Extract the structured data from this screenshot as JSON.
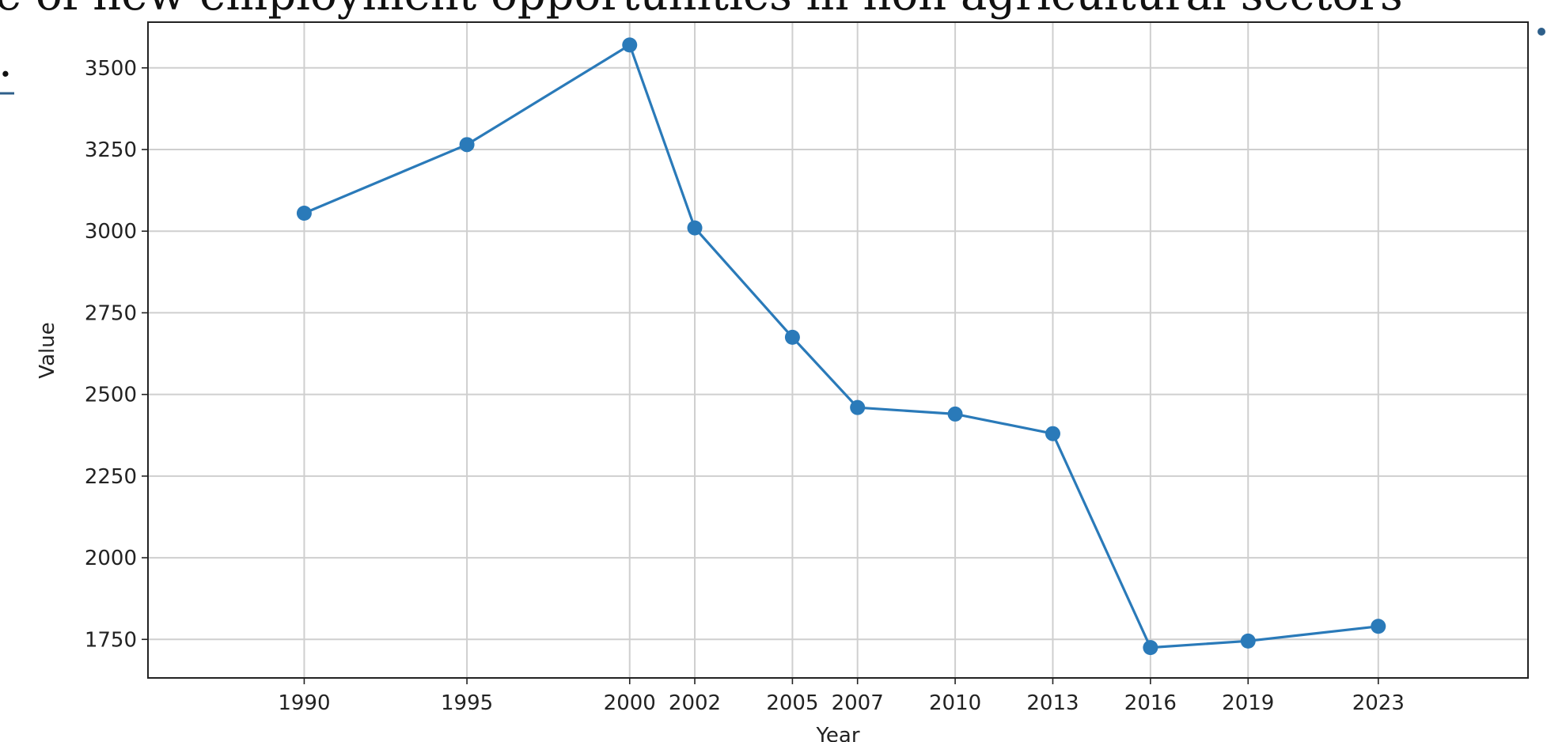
{
  "background_text": {
    "headline": "e of new employment opportunities in non agricultural sectors",
    "left_mark": "."
  },
  "chart_data": {
    "type": "line",
    "title": "",
    "xlabel": "Year",
    "ylabel": "Value",
    "x": [
      1990,
      1995,
      2000,
      2002,
      2005,
      2007,
      2010,
      2013,
      2016,
      2019,
      2023
    ],
    "series": [
      {
        "values": [
          3055,
          3265,
          3570,
          3010,
          2675,
          2460,
          2440,
          2380,
          1725,
          1745,
          1790
        ],
        "color": "#2a7ab9",
        "marker": "circle"
      }
    ],
    "xticks": [
      "1990",
      "1995",
      "2000",
      "2002",
      "2005",
      "2007",
      "2010",
      "2013",
      "2016",
      "2019",
      "2023"
    ],
    "yticks": [
      "1750",
      "2000",
      "2250",
      "2500",
      "2750",
      "3000",
      "3250",
      "3500"
    ],
    "ylim": [
      1632,
      3640
    ],
    "xlim": [
      1985.2,
      2027.6
    ],
    "grid": true,
    "legend": "none"
  }
}
